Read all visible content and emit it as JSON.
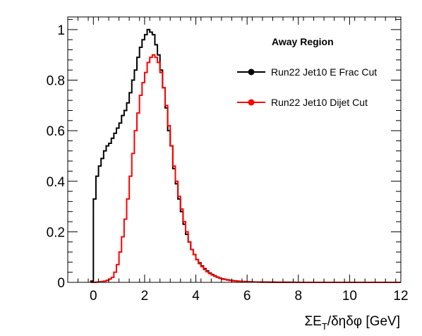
{
  "chart_data": {
    "type": "line",
    "title": "",
    "xlabel": "ΣE_T/δηδφ [GeV]",
    "xlabel_parts": {
      "sigma": "ΣE",
      "sub": "T",
      "rest": "/δηδφ [GeV]"
    },
    "ylabel": "",
    "xlim": [
      -1,
      12
    ],
    "ylim": [
      0,
      1.05
    ],
    "x_ticks": [
      0,
      2,
      4,
      6,
      8,
      10,
      12
    ],
    "y_ticks": [
      0,
      0.2,
      0.4,
      0.6,
      0.8,
      1
    ],
    "x_tick_labels": [
      "0",
      "2",
      "4",
      "6",
      "8",
      "10",
      "12"
    ],
    "y_tick_labels": [
      "0",
      "0.2",
      "0.4",
      "0.6",
      "0.8",
      "1"
    ],
    "grid": false,
    "legend": {
      "title": "Away Region",
      "placement": "top-right",
      "entries": [
        "Run22 Jet10 E Frac Cut",
        "Run22 Jet10 Dijet Cut"
      ]
    },
    "bin_width": 0.1,
    "series": [
      {
        "name": "Run22 Jet10 E Frac Cut",
        "color": "#000000",
        "x": [
          -0.05,
          0.05,
          0.15,
          0.25,
          0.35,
          0.45,
          0.55,
          0.65,
          0.75,
          0.85,
          0.95,
          1.05,
          1.15,
          1.25,
          1.35,
          1.45,
          1.55,
          1.65,
          1.75,
          1.85,
          1.95,
          2.05,
          2.15,
          2.25,
          2.35,
          2.45,
          2.55,
          2.65,
          2.75,
          2.85,
          2.95,
          3.05,
          3.15,
          3.25,
          3.35,
          3.45,
          3.55,
          3.65,
          3.75,
          3.85,
          3.95,
          4.05,
          4.15,
          4.25,
          4.35,
          4.45,
          4.55,
          4.65,
          4.75,
          4.85,
          4.95,
          5.05,
          5.15,
          5.25,
          5.35,
          5.45,
          5.55,
          5.65,
          5.75,
          5.85,
          5.95,
          6.05,
          6.15,
          6.25,
          6.35,
          6.45,
          6.55,
          6.65,
          6.75,
          6.85,
          6.95,
          7.05,
          7.15,
          7.25,
          7.35,
          7.45,
          7.55,
          7.65,
          7.75,
          7.85,
          7.95
        ],
        "y": [
          0.005,
          0.33,
          0.42,
          0.46,
          0.49,
          0.52,
          0.54,
          0.55,
          0.57,
          0.59,
          0.61,
          0.63,
          0.66,
          0.68,
          0.71,
          0.75,
          0.8,
          0.84,
          0.89,
          0.93,
          0.96,
          0.98,
          1.0,
          0.99,
          0.98,
          0.94,
          0.9,
          0.84,
          0.77,
          0.69,
          0.6,
          0.54,
          0.45,
          0.39,
          0.33,
          0.28,
          0.23,
          0.19,
          0.16,
          0.13,
          0.11,
          0.09,
          0.077,
          0.065,
          0.054,
          0.045,
          0.037,
          0.031,
          0.026,
          0.021,
          0.017,
          0.014,
          0.012,
          0.01,
          0.008,
          0.007,
          0.006,
          0.005,
          0.004,
          0.0035,
          0.003,
          0.0025,
          0.002,
          0.0018,
          0.0015,
          0.0013,
          0.0011,
          0.001,
          0.0009,
          0.0008,
          0.0007,
          0.0006,
          0.0005,
          0.0004,
          0.0004,
          0.0003,
          0.0003,
          0.0002,
          0.0002,
          0.0002,
          0.0001
        ]
      },
      {
        "name": "Run22 Jet10 Dijet Cut",
        "color": "#ff0000",
        "x": [
          -0.05,
          0.05,
          0.15,
          0.25,
          0.35,
          0.45,
          0.55,
          0.65,
          0.75,
          0.85,
          0.95,
          1.05,
          1.15,
          1.25,
          1.35,
          1.45,
          1.55,
          1.65,
          1.75,
          1.85,
          1.95,
          2.05,
          2.15,
          2.25,
          2.35,
          2.45,
          2.55,
          2.65,
          2.75,
          2.85,
          2.95,
          3.05,
          3.15,
          3.25,
          3.35,
          3.45,
          3.55,
          3.65,
          3.75,
          3.85,
          3.95,
          4.05,
          4.15,
          4.25,
          4.35,
          4.45,
          4.55,
          4.65,
          4.75,
          4.85,
          4.95,
          5.05,
          5.15,
          5.25,
          5.35,
          5.45,
          5.55,
          5.65,
          5.75,
          5.85,
          5.95,
          6.05,
          6.15,
          6.25,
          6.35,
          6.45,
          6.55,
          6.65,
          6.75,
          6.85,
          6.95,
          7.05,
          7.15,
          7.25,
          7.35,
          7.45,
          7.55,
          7.65,
          7.75,
          7.85,
          7.95
        ],
        "y": [
          0,
          0,
          0.001,
          0.002,
          0.003,
          0.005,
          0.008,
          0.013,
          0.02,
          0.04,
          0.07,
          0.12,
          0.18,
          0.25,
          0.33,
          0.42,
          0.51,
          0.6,
          0.67,
          0.74,
          0.79,
          0.83,
          0.87,
          0.89,
          0.9,
          0.89,
          0.87,
          0.83,
          0.77,
          0.7,
          0.62,
          0.54,
          0.46,
          0.4,
          0.34,
          0.29,
          0.24,
          0.2,
          0.16,
          0.13,
          0.11,
          0.09,
          0.074,
          0.062,
          0.051,
          0.042,
          0.035,
          0.029,
          0.024,
          0.02,
          0.016,
          0.013,
          0.011,
          0.009,
          0.0075,
          0.0062,
          0.0052,
          0.0043,
          0.0036,
          0.003,
          0.0025,
          0.0021,
          0.0018,
          0.0015,
          0.0013,
          0.0011,
          0.0009,
          0.0008,
          0.0007,
          0.0006,
          0.0005,
          0.0004,
          0.0004,
          0.0003,
          0.0003,
          0.0002,
          0.0002,
          0.0002,
          0.0001,
          0.0001,
          0.0001
        ]
      }
    ]
  }
}
